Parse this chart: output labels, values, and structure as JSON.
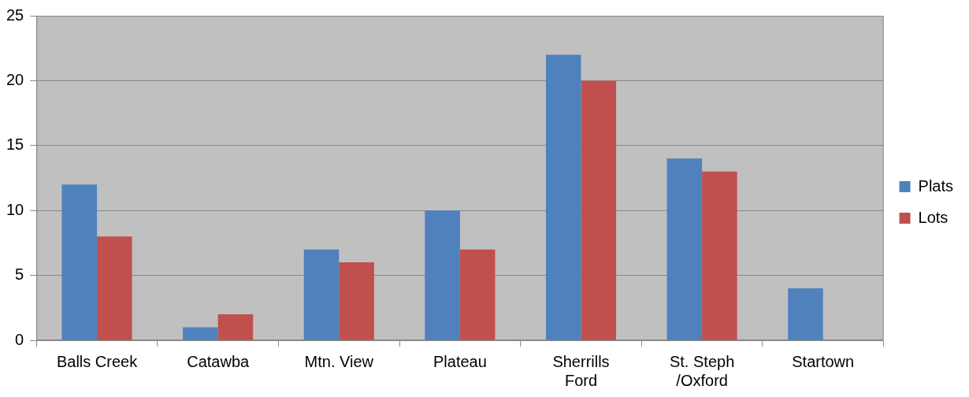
{
  "chart_data": {
    "type": "bar",
    "categories": [
      "Balls Creek",
      "Catawba",
      "Mtn. View",
      "Plateau",
      "Sherrills Ford",
      "St. Steph /Oxford",
      "Startown"
    ],
    "series": [
      {
        "name": "Plats",
        "color": "#4f81bd",
        "values": [
          12,
          1,
          7,
          10,
          22,
          14,
          4
        ]
      },
      {
        "name": "Lots",
        "color": "#c0504d",
        "values": [
          8,
          2,
          6,
          7,
          20,
          13,
          0
        ]
      }
    ],
    "ylim": [
      0,
      25
    ],
    "yticks": [
      0,
      5,
      10,
      15,
      20,
      25
    ],
    "grid": "y",
    "legend": "right"
  }
}
